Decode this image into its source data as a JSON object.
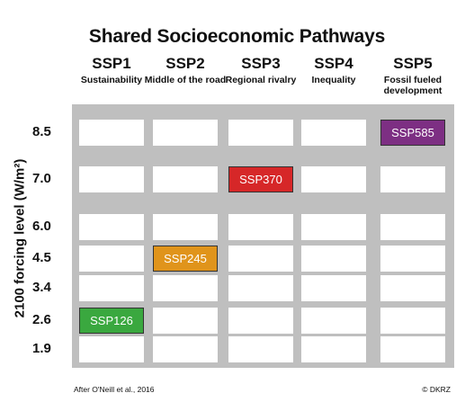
{
  "title": "Shared Socioeconomic Pathways",
  "columns": [
    {
      "code": "SSP1",
      "desc": "Sustainability"
    },
    {
      "code": "SSP2",
      "desc": "Middle of the road"
    },
    {
      "code": "SSP3",
      "desc": "Regional rivalry"
    },
    {
      "code": "SSP4",
      "desc": "Inequality"
    },
    {
      "code": "SSP5",
      "desc": "Fossil fueled development"
    }
  ],
  "y_axis_label": "2100 forcing level (W/m²)",
  "levels": [
    "8.5",
    "7.0",
    "6.0",
    "4.5",
    "3.4",
    "2.6",
    "1.9"
  ],
  "scenarios": [
    {
      "label": "SSP585",
      "column": 4,
      "level": 0,
      "color": "#7d2f83"
    },
    {
      "label": "SSP370",
      "column": 2,
      "level": 1,
      "color": "#d62728"
    },
    {
      "label": "SSP245",
      "column": 1,
      "level": 3,
      "color": "#e0941b"
    },
    {
      "label": "SSP126",
      "column": 0,
      "level": 5,
      "color": "#3aa83f"
    }
  ],
  "footer": {
    "source": "After O'Neill et al., 2016",
    "credit": "© DKRZ"
  }
}
